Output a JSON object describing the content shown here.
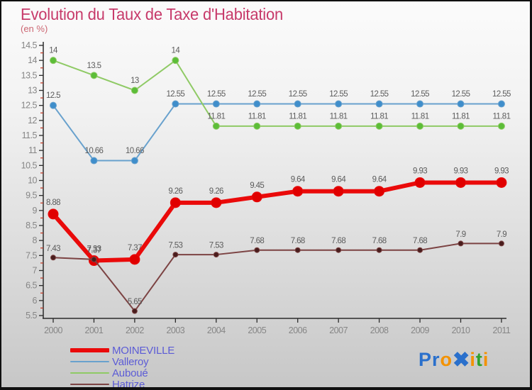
{
  "header": {
    "title": "Evolution du Taux de Taxe d'Habitation",
    "subtitle": "(en %)",
    "title_color": "#c73a6a",
    "subtitle_color": "#cc6672"
  },
  "chart_data": {
    "type": "line",
    "title": "Evolution du Taux de Taxe d'Habitation",
    "subtitle": "(en %)",
    "x": [
      2000,
      2001,
      2002,
      2003,
      2004,
      2005,
      2006,
      2007,
      2008,
      2009,
      2010,
      2011
    ],
    "ylim": [
      5.5,
      14.5
    ],
    "ytick_step": 0.5,
    "yminor_step": 0.25,
    "grid": false,
    "point_labels": true,
    "legend_position": "bottom-left",
    "colors": {
      "axis": "#2b2b2b",
      "minor_tick": "#c3341f",
      "tick_label": "#868686",
      "point_label": "#5c5c5c"
    },
    "series": [
      {
        "name": "MOINEVILLE",
        "color": "#ea0a0a",
        "dot_color": "#e00000",
        "line_width": 6,
        "dot_radius": 7,
        "values": [
          8.88,
          7.33,
          7.37,
          9.26,
          9.26,
          9.45,
          9.64,
          9.64,
          9.64,
          9.93,
          9.93,
          9.93
        ]
      },
      {
        "name": "Valleroy",
        "color": "#68a1cd",
        "dot_color": "#3f8ecb",
        "line_width": 2,
        "dot_radius": 4.5,
        "values": [
          12.5,
          10.66,
          10.66,
          12.55,
          12.55,
          12.55,
          12.55,
          12.55,
          12.55,
          12.55,
          12.55,
          12.55
        ]
      },
      {
        "name": "Auboué",
        "color": "#8fca65",
        "dot_color": "#5cbd38",
        "line_width": 2,
        "dot_radius": 4.5,
        "values": [
          14,
          13.5,
          13,
          14,
          11.81,
          11.81,
          11.81,
          11.81,
          11.81,
          11.81,
          11.81,
          11.81
        ]
      },
      {
        "name": "Hatrize",
        "color": "#7c4343",
        "dot_color": "#491d1d",
        "line_width": 2,
        "dot_radius": 3.5,
        "values": [
          7.43,
          7.37,
          5.65,
          7.53,
          7.53,
          7.68,
          7.68,
          7.68,
          7.68,
          7.68,
          7.9,
          7.9
        ]
      }
    ],
    "draw_order": [
      "Valleroy",
      "Auboué",
      "MOINEVILLE",
      "Hatrize"
    ]
  },
  "legend": {
    "text_color": "#5c5cd6"
  },
  "logo": {
    "letters": [
      {
        "ch": "P",
        "color": "#2a70cc"
      },
      {
        "ch": "r",
        "color": "#2a70cc"
      },
      {
        "ch": "o",
        "color": "#f39200"
      },
      {
        "ch": "✖",
        "color": "#2a70cc"
      },
      {
        "ch": "i",
        "color": "#f39200"
      },
      {
        "ch": "t",
        "color": "#2fa12f"
      },
      {
        "ch": "i",
        "color": "#f39200"
      }
    ]
  }
}
